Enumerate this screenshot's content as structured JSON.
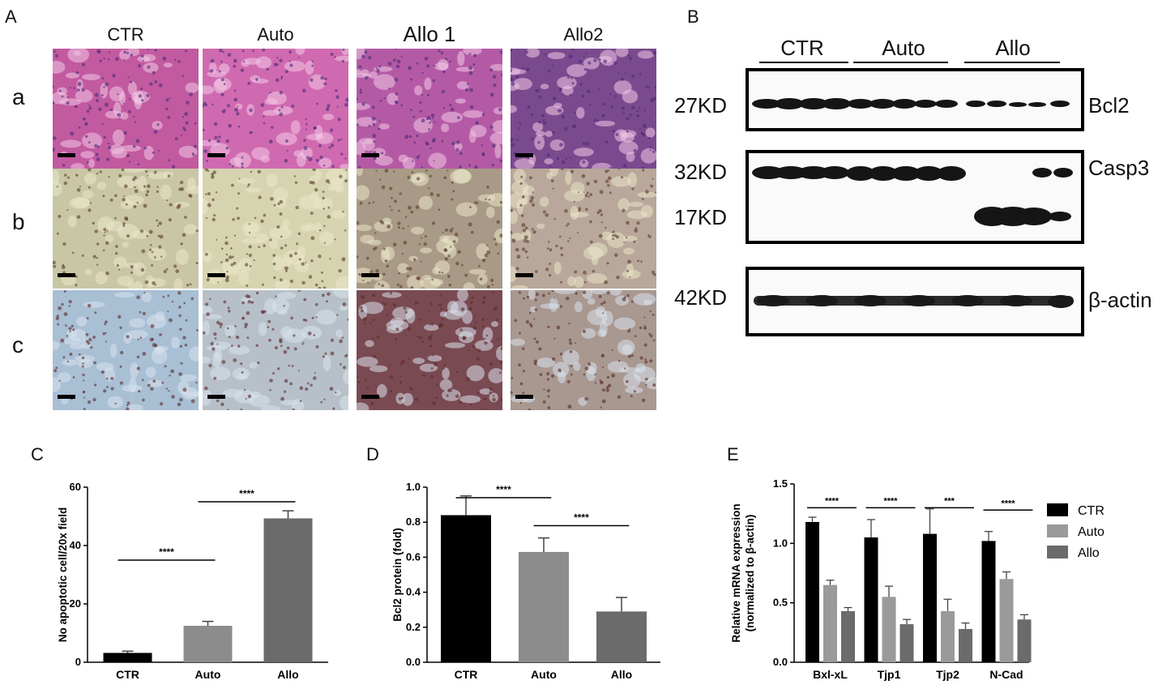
{
  "panelA": {
    "label": "A",
    "columns": [
      "CTR",
      "Auto",
      "Allo 1",
      "Allo2"
    ],
    "rows": [
      "a",
      "b",
      "c"
    ],
    "tile_colors": [
      [
        "#c25aa0",
        "#d06ab0",
        "#b45aa5",
        "#7a4a8e"
      ],
      [
        "#c9c6a6",
        "#d6d4b0",
        "#a89a86",
        "#b8a79a"
      ],
      [
        "#a8bfd4",
        "#b7c0c8",
        "#7a4a52",
        "#a89890"
      ]
    ]
  },
  "panelB": {
    "label": "B",
    "groups": [
      "CTR",
      "Auto",
      "Allo"
    ],
    "blots": [
      {
        "protein": "Bcl2",
        "bands": [
          "27KD"
        ]
      },
      {
        "protein": "Casp3",
        "bands": [
          "32KD",
          "17KD"
        ]
      },
      {
        "protein": "β-actin",
        "bands": [
          "42KD"
        ]
      }
    ]
  },
  "panelC": {
    "label": "C"
  },
  "panelD": {
    "label": "D"
  },
  "panelE": {
    "label": "E"
  },
  "chart_data": [
    {
      "type": "bar",
      "title": "",
      "ylabel": "No apoptotic cell/20x field",
      "categories": [
        "CTR",
        "Auto",
        "Allo"
      ],
      "values": [
        3.2,
        12.5,
        49.3
      ],
      "errors": [
        0.6,
        1.5,
        2.6
      ],
      "colors": [
        "#000000",
        "#8c8c8c",
        "#6b6b6b"
      ],
      "ylim": [
        0,
        60
      ],
      "yticks": [
        "0",
        "20",
        "40",
        "60"
      ],
      "significance": [
        {
          "from": 0,
          "to": 1,
          "y": 35,
          "label": "****"
        },
        {
          "from": 1,
          "to": 2,
          "y": 55,
          "label": "****"
        }
      ]
    },
    {
      "type": "bar",
      "title": "",
      "ylabel": "Bcl2 protein (fold)",
      "categories": [
        "CTR",
        "Auto",
        "Allo"
      ],
      "values": [
        0.84,
        0.63,
        0.29
      ],
      "errors": [
        0.11,
        0.08,
        0.08
      ],
      "colors": [
        "#000000",
        "#8c8c8c",
        "#6b6b6b"
      ],
      "ylim": [
        0,
        1.0
      ],
      "yticks": [
        "0.0",
        "0.2",
        "0.4",
        "0.6",
        "0.8",
        "1.0"
      ],
      "significance": [
        {
          "from": 0,
          "to": 1,
          "y": 0.94,
          "label": "****"
        },
        {
          "from": 1,
          "to": 2,
          "y": 0.78,
          "label": "****"
        }
      ]
    },
    {
      "type": "bar",
      "title": "",
      "ylabel": "Relative  mRNA expression",
      "ylabel2": "(normalized to β-actin)",
      "categories": [
        "Bxl-xL",
        "Tjp1",
        "Tjp2",
        "N-Cad"
      ],
      "series": [
        {
          "name": "CTR",
          "color": "#000000",
          "values": [
            1.18,
            1.05,
            1.08,
            1.02
          ],
          "errors": [
            0.04,
            0.15,
            0.21,
            0.08
          ]
        },
        {
          "name": "Auto",
          "color": "#9a9a9a",
          "values": [
            0.65,
            0.55,
            0.43,
            0.7
          ],
          "errors": [
            0.04,
            0.09,
            0.1,
            0.06
          ]
        },
        {
          "name": "Allo",
          "color": "#6b6b6b",
          "values": [
            0.43,
            0.32,
            0.28,
            0.36
          ],
          "errors": [
            0.03,
            0.04,
            0.05,
            0.04
          ]
        }
      ],
      "ylim": [
        0,
        1.5
      ],
      "yticks": [
        "0.0",
        "0.5",
        "1.0",
        "1.5"
      ],
      "significance": [
        {
          "category": 0,
          "y": 1.3,
          "label": "****"
        },
        {
          "category": 1,
          "y": 1.3,
          "label": "****"
        },
        {
          "category": 2,
          "y": 1.3,
          "label": "***"
        },
        {
          "category": 3,
          "y": 1.28,
          "label": "****"
        }
      ],
      "legend": "right"
    }
  ]
}
